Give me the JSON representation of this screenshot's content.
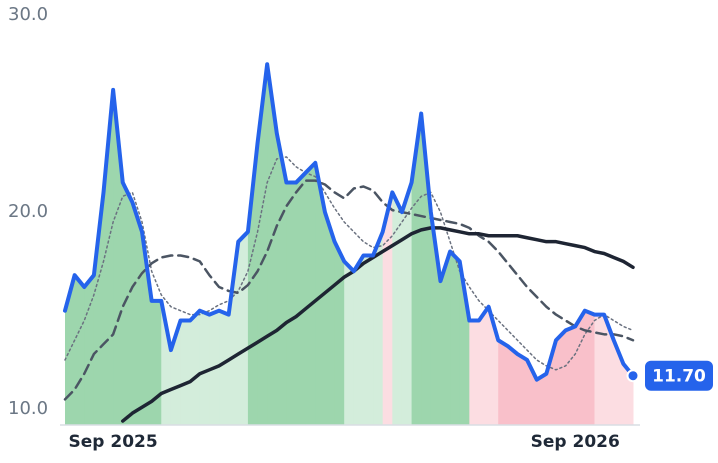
{
  "chart_data": {
    "type": "line",
    "categories": [
      null,
      null,
      null,
      null,
      null,
      "Sep 2025",
      null,
      null,
      null,
      null,
      null,
      null,
      null,
      null,
      null,
      null,
      null,
      null,
      null,
      null,
      null,
      null,
      null,
      null,
      null,
      null,
      null,
      null,
      null,
      null,
      null,
      null,
      null,
      null,
      null,
      null,
      null,
      null,
      null,
      null,
      null,
      null,
      null,
      null,
      null,
      null,
      null,
      null,
      null,
      null,
      null,
      null,
      null,
      "Sep 2026",
      null,
      null,
      null,
      null,
      null,
      null
    ],
    "ylim": [
      9.2,
      30.0
    ],
    "yticks": [
      {
        "value": 10,
        "label": "10.0"
      },
      {
        "value": 20,
        "label": "20.0"
      },
      {
        "value": 30,
        "label": "30.0"
      }
    ],
    "series": [
      {
        "color": "#2563eb",
        "style": "solid",
        "width": 4,
        "values": [
          15.0,
          16.8,
          16.2,
          16.8,
          21.0,
          26.2,
          21.5,
          20.5,
          19.0,
          15.5,
          15.5,
          13.0,
          14.5,
          14.5,
          15.0,
          14.8,
          15.0,
          14.8,
          18.5,
          19.0,
          23.5,
          27.5,
          24.0,
          21.5,
          21.5,
          22.0,
          22.5,
          20.0,
          18.5,
          17.5,
          17.0,
          17.8,
          17.8,
          19.0,
          21.0,
          20.0,
          21.5,
          25.0,
          20.0,
          16.5,
          18.0,
          17.5,
          14.5,
          14.5,
          15.2,
          13.5,
          13.2,
          12.8,
          12.5,
          11.5,
          11.8,
          13.5,
          14.0,
          14.2,
          15.0,
          14.8,
          14.8,
          13.5,
          12.3,
          11.7
        ],
        "value_labels": [
          null,
          null,
          null,
          null,
          null,
          null,
          null,
          null,
          null,
          null,
          null,
          null,
          null,
          null,
          null,
          null,
          null,
          null,
          null,
          null,
          null,
          null,
          null,
          null,
          null,
          null,
          null,
          null,
          null,
          null,
          null,
          null,
          null,
          null,
          null,
          null,
          null,
          null,
          null,
          null,
          null,
          null,
          null,
          null,
          null,
          null,
          null,
          null,
          null,
          null,
          null,
          null,
          null,
          null,
          null,
          null,
          null,
          null,
          null,
          "11.70"
        ],
        "fill_colors": [
          "#9dd6ad",
          "#9dd6ad",
          "#9dd6ad",
          "#9dd6ad",
          "#9dd6ad",
          "#9dd6ad",
          "#9dd6ad",
          "#9dd6ad",
          "#9dd6ad",
          "#9dd6ad",
          "#d3eddb",
          "#d3eddb",
          "#d3eddb",
          "#d3eddb",
          "#d3eddb",
          "#d3eddb",
          "#d3eddb",
          "#d3eddb",
          "#d3eddb",
          "#9dd6ad",
          "#9dd6ad",
          "#9dd6ad",
          "#9dd6ad",
          "#9dd6ad",
          "#9dd6ad",
          "#9dd6ad",
          "#9dd6ad",
          "#9dd6ad",
          "#9dd6ad",
          "#d3eddb",
          "#d3eddb",
          "#d3eddb",
          "#d3eddb",
          "#fcdde2",
          "#d3eddb",
          "#d3eddb",
          "#9dd6ad",
          "#9dd6ad",
          "#9dd6ad",
          "#9dd6ad",
          "#9dd6ad",
          "#9dd6ad",
          "#fcdde2",
          "#fcdde2",
          "#fcdde2",
          "#f9c0ca",
          "#f9c0ca",
          "#f9c0ca",
          "#f9c0ca",
          "#f9c0ca",
          "#f9c0ca",
          "#f9c0ca",
          "#f9c0ca",
          "#f9c0ca",
          "#f9c0ca",
          "#fcdde2",
          "#fcdde2",
          "#fcdde2",
          "#fcdde2",
          "#fcdde2"
        ]
      },
      {
        "color": "#1e2533",
        "style": "solid",
        "width": 3.5,
        "values": [
          null,
          null,
          null,
          null,
          null,
          null,
          9.4,
          9.8,
          10.1,
          10.4,
          10.8,
          11.0,
          11.2,
          11.4,
          11.8,
          12.0,
          12.2,
          12.5,
          12.8,
          13.1,
          13.4,
          13.7,
          14.0,
          14.4,
          14.7,
          15.1,
          15.5,
          15.9,
          16.3,
          16.7,
          17.0,
          17.4,
          17.7,
          18.0,
          18.3,
          18.6,
          18.9,
          19.1,
          19.2,
          19.2,
          19.1,
          19.0,
          18.9,
          18.9,
          18.8,
          18.8,
          18.8,
          18.8,
          18.7,
          18.6,
          18.5,
          18.5,
          18.4,
          18.3,
          18.2,
          18.0,
          17.9,
          17.7,
          17.5,
          17.2
        ]
      },
      {
        "color": "#4b5563",
        "style": "dashed",
        "width": 2.5,
        "values": [
          10.5,
          11.0,
          11.8,
          12.8,
          13.3,
          13.8,
          15.2,
          16.2,
          16.9,
          17.4,
          17.7,
          17.8,
          17.8,
          17.7,
          17.5,
          16.8,
          16.2,
          16.0,
          15.9,
          16.3,
          17.0,
          18.0,
          19.3,
          20.3,
          21.0,
          21.6,
          21.6,
          21.4,
          21.0,
          20.7,
          21.2,
          21.3,
          21.1,
          20.5,
          20.1,
          20.0,
          19.9,
          19.8,
          19.7,
          19.6,
          19.5,
          19.4,
          19.2,
          18.8,
          18.5,
          18.0,
          17.4,
          16.8,
          16.2,
          15.7,
          15.2,
          14.8,
          14.5,
          14.2,
          14.0,
          13.9,
          13.8,
          13.8,
          13.7,
          13.5
        ]
      },
      {
        "color": "#6b7280",
        "style": "dotted",
        "width": 1.5,
        "values": [
          12.5,
          13.5,
          14.5,
          15.8,
          17.5,
          19.5,
          20.8,
          21.0,
          19.5,
          17.0,
          15.8,
          15.2,
          15.0,
          14.8,
          14.8,
          15.0,
          15.3,
          15.5,
          16.0,
          17.0,
          19.0,
          21.5,
          22.7,
          22.8,
          22.3,
          22.0,
          21.8,
          21.0,
          20.2,
          19.5,
          19.0,
          18.5,
          18.2,
          18.3,
          18.8,
          19.5,
          20.2,
          20.8,
          21.0,
          20.0,
          18.5,
          17.0,
          16.2,
          15.5,
          15.0,
          14.5,
          14.0,
          13.5,
          13.0,
          12.5,
          12.2,
          12.0,
          12.2,
          12.8,
          13.8,
          14.5,
          14.8,
          14.5,
          14.2,
          14.0
        ]
      }
    ]
  }
}
